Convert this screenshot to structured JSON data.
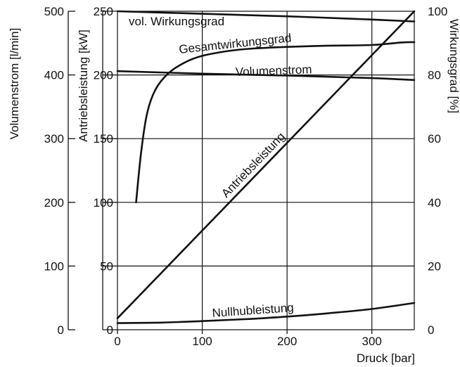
{
  "chart_data": {
    "type": "line",
    "title": "",
    "xlabel": "Druck [bar]",
    "xlim": [
      0,
      350
    ],
    "x_ticks": [
      "0",
      "100",
      "200",
      "300"
    ],
    "x_tick_values": [
      0,
      100,
      200,
      300
    ],
    "grid": true,
    "axes": {
      "volumenstrom": {
        "label": "Volumenstrom [l/min]",
        "side": "left-outer",
        "range": [
          0,
          500
        ],
        "ticks": [
          "0",
          "100",
          "200",
          "300",
          "400",
          "500"
        ],
        "tick_values": [
          0,
          100,
          200,
          300,
          400,
          500
        ]
      },
      "leistung": {
        "label": "Antriebsleistung [kW]",
        "side": "left-inner",
        "range": [
          0,
          250
        ],
        "ticks": [
          "0",
          "50",
          "100",
          "150",
          "200",
          "250"
        ],
        "tick_values": [
          0,
          50,
          100,
          150,
          200,
          250
        ]
      },
      "wirkungsgrad": {
        "label": "Wirkungsgrad [%]",
        "side": "right",
        "range": [
          0,
          100
        ],
        "ticks": [
          "0",
          "20",
          "40",
          "60",
          "80",
          "100"
        ],
        "tick_values": [
          0,
          20,
          40,
          60,
          80,
          100
        ]
      }
    },
    "series": [
      {
        "name": "vol. Wirkungsgrad",
        "axis": "wirkungsgrad",
        "x": [
          0,
          100,
          200,
          300,
          350
        ],
        "values": [
          100,
          99.2,
          98.4,
          97.4,
          96.8
        ]
      },
      {
        "name": "Gesamtwirkungsgrad",
        "axis": "wirkungsgrad",
        "x": [
          22,
          28,
          35,
          45,
          60,
          80,
          100,
          130,
          160,
          200,
          250,
          300,
          335,
          350
        ],
        "values": [
          40,
          56,
          68,
          75.5,
          80.5,
          84,
          86,
          87.5,
          88.3,
          88.8,
          89.2,
          89.4,
          90.2,
          90.3
        ]
      },
      {
        "name": "Volumenstrom",
        "axis": "volumenstrom",
        "x": [
          0,
          100,
          200,
          300,
          350
        ],
        "values": [
          406,
          402,
          399,
          395,
          392
        ]
      },
      {
        "name": "Antriebsleistung",
        "axis": "leistung",
        "x": [
          0,
          350
        ],
        "values": [
          9,
          250
        ]
      },
      {
        "name": "Nullhubleistung",
        "axis": "leistung",
        "x": [
          0,
          50,
          100,
          150,
          200,
          250,
          300,
          350
        ],
        "values": [
          5.2,
          5.6,
          6.8,
          8.3,
          10.3,
          13,
          16.3,
          21
        ]
      }
    ]
  }
}
